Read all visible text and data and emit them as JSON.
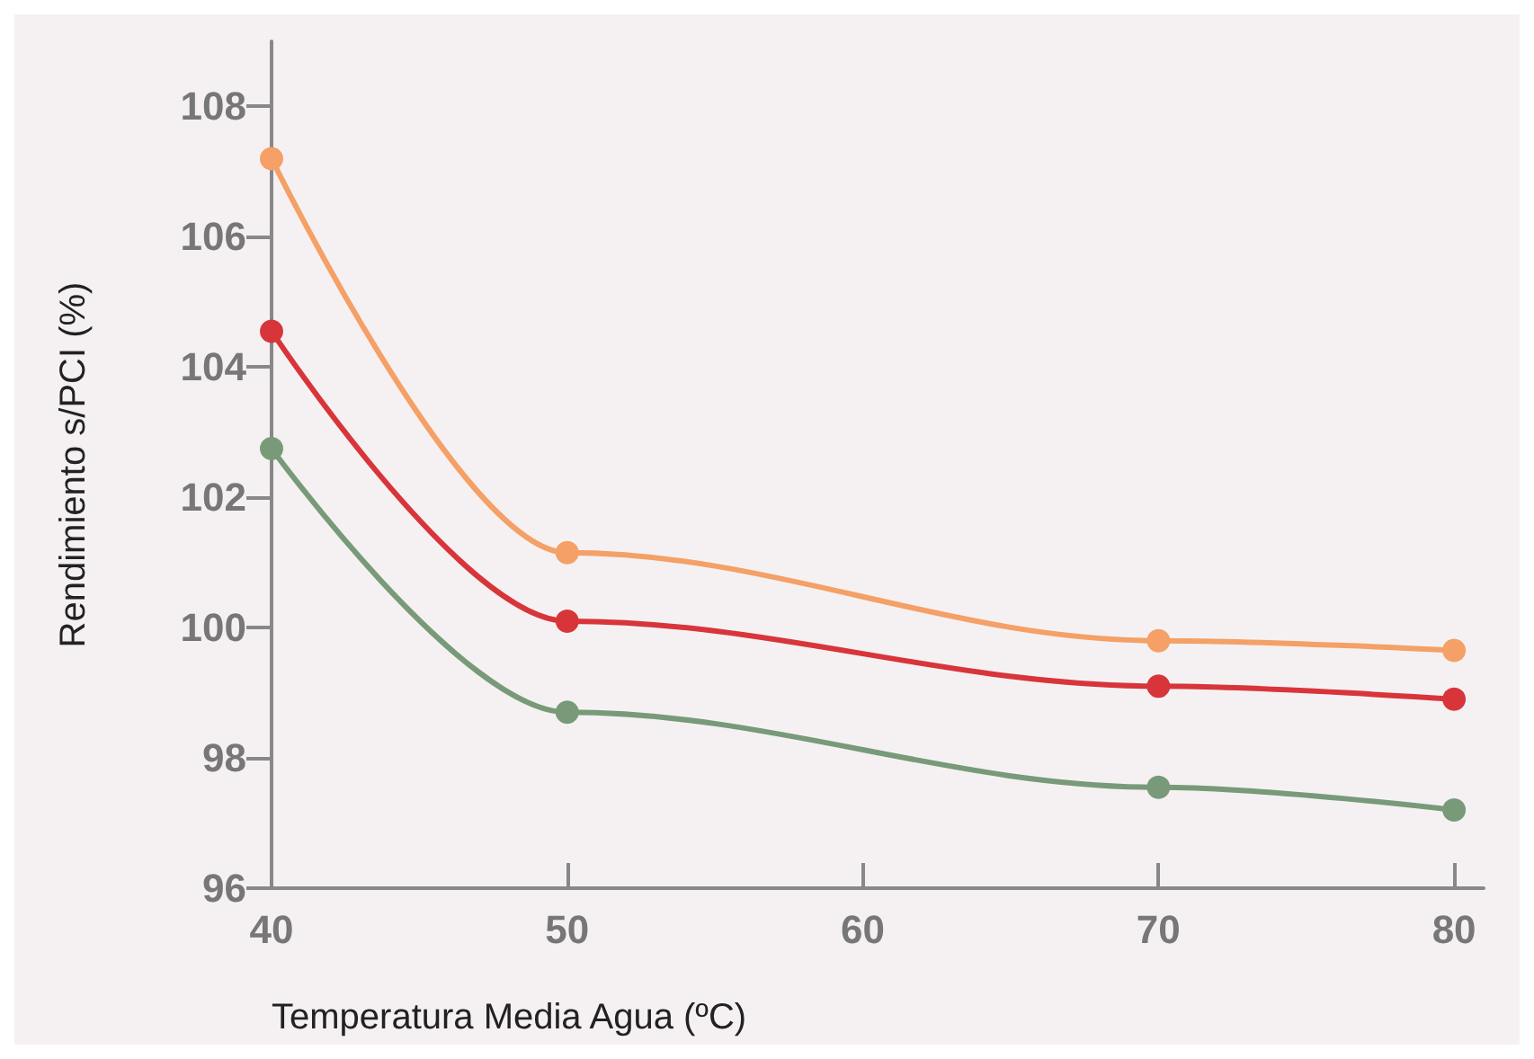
{
  "chart_data": {
    "type": "line",
    "xlabel": "Temperatura Media Agua (ºC)",
    "ylabel": "Rendimiento s/PCI (%)",
    "x": [
      40,
      50,
      70,
      80
    ],
    "series": [
      {
        "color": "#f4a066",
        "values": [
          107.2,
          101.15,
          99.8,
          99.65
        ]
      },
      {
        "color": "#d8353b",
        "values": [
          104.55,
          100.1,
          99.1,
          98.9
        ]
      },
      {
        "color": "#789a78",
        "values": [
          102.75,
          98.7,
          97.55,
          97.2
        ]
      }
    ],
    "xlim": [
      40,
      81
    ],
    "xticks": [
      40,
      50,
      60,
      70,
      80
    ],
    "ylim": [
      96,
      109
    ],
    "yticks": [
      96,
      98,
      100,
      102,
      104,
      106,
      108
    ],
    "grid": false,
    "marker": "circle",
    "line_style": "solid"
  }
}
